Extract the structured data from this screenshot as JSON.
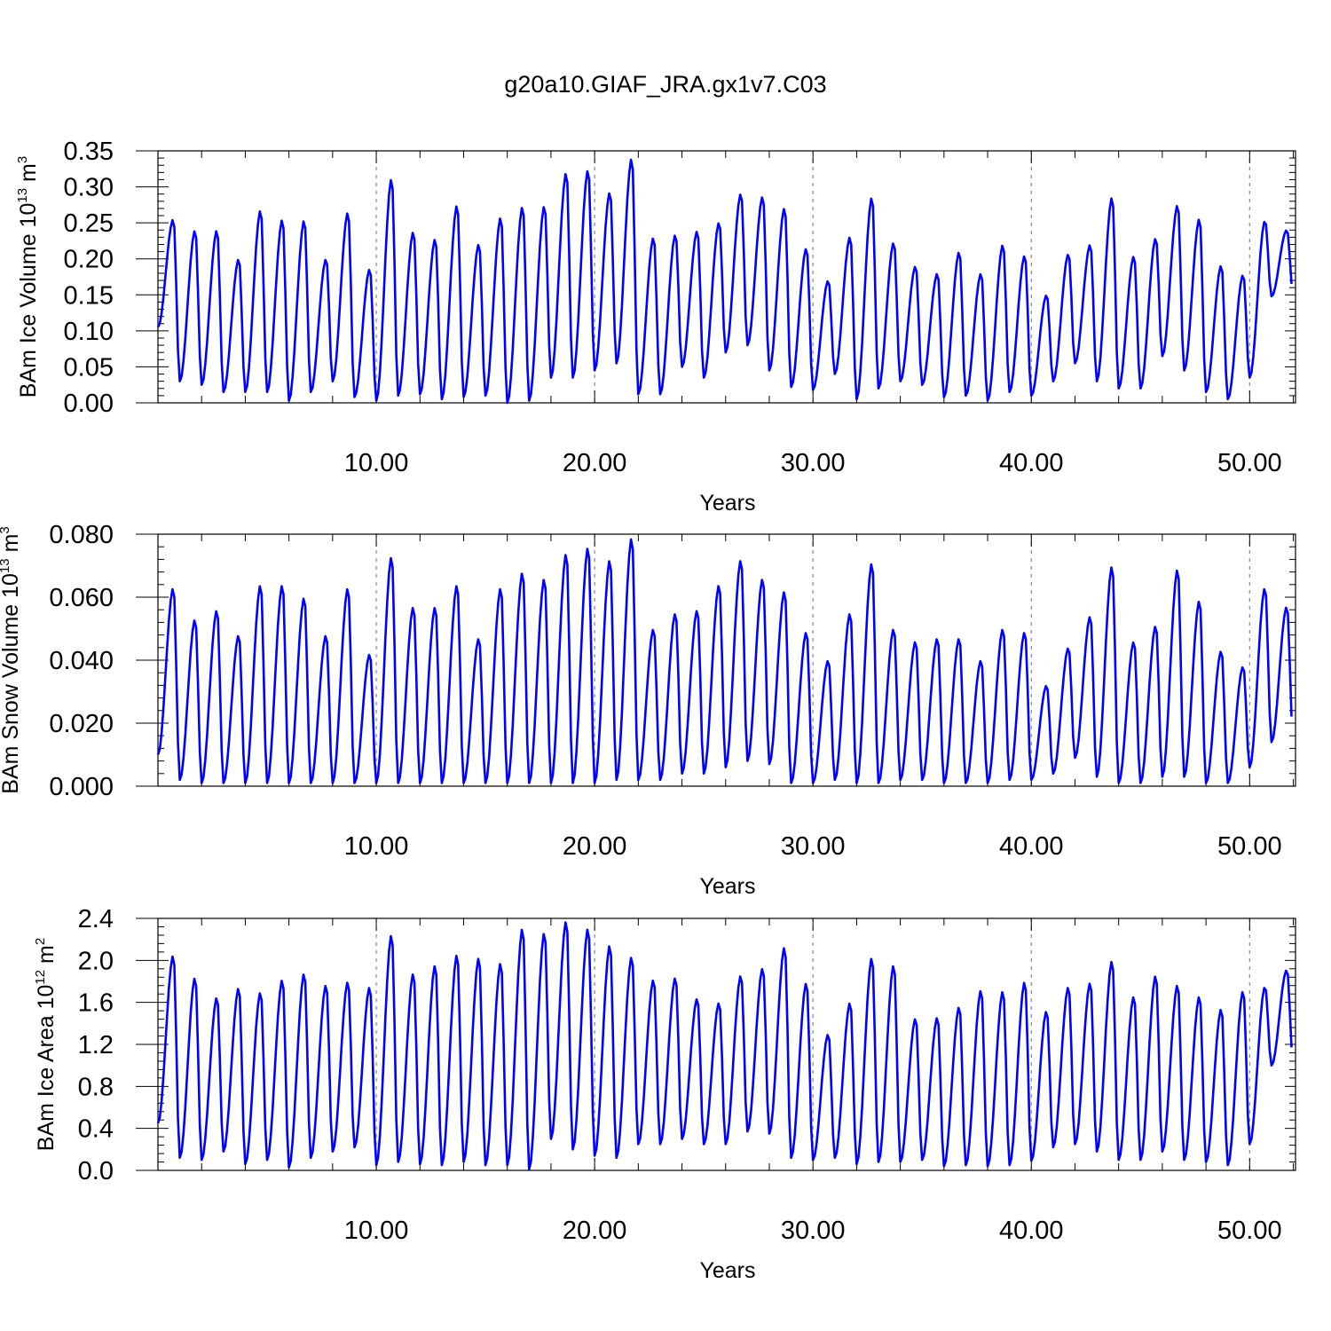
{
  "title": "g20a10.GIAF_JRA.gx1v7.C03",
  "chart_data": [
    {
      "type": "line",
      "ylabel_main": "BAm Ice Volume 10",
      "ylabel_exp": "13",
      "ylabel_unit": " m",
      "ylabel_unit_exp": "3",
      "xlabel": "Years",
      "xlim": [
        0,
        52.1
      ],
      "ylim": [
        0,
        0.35
      ],
      "yticks": [
        0,
        0.05,
        0.1,
        0.15,
        0.2,
        0.25,
        0.3,
        0.35
      ],
      "ytick_labels": [
        "0.00",
        "0.05",
        "0.10",
        "0.15",
        "0.20",
        "0.25",
        "0.30",
        "0.35"
      ],
      "xticks": [
        10,
        20,
        30,
        40,
        50
      ],
      "xtick_labels": [
        "10.00",
        "20.00",
        "30.00",
        "40.00",
        "50.00"
      ],
      "series_color": "#0000ff",
      "year_peak": [
        0.255,
        0.24,
        0.24,
        0.2,
        0.268,
        0.255,
        0.254,
        0.2,
        0.265,
        0.186,
        0.312,
        0.238,
        0.228,
        0.275,
        0.221,
        0.258,
        0.273,
        0.274,
        0.32,
        0.324,
        0.293,
        0.34,
        0.23,
        0.234,
        0.239,
        0.251,
        0.291,
        0.287,
        0.271,
        0.215,
        0.17,
        0.231,
        0.286,
        0.223,
        0.19,
        0.18,
        0.21,
        0.18,
        0.22,
        0.205,
        0.15,
        0.207,
        0.22,
        0.286,
        0.204,
        0.229,
        0.275,
        0.256,
        0.191,
        0.178,
        0.253,
        0.24
      ],
      "year_min": [
        0.105,
        0.03,
        0.025,
        0.015,
        0.015,
        0.015,
        0.003,
        0.015,
        0.03,
        0.008,
        0.003,
        0.01,
        0.012,
        0.005,
        0.008,
        0.01,
        0.0,
        0.003,
        0.035,
        0.035,
        0.045,
        0.055,
        0.012,
        0.012,
        0.05,
        0.035,
        0.07,
        0.08,
        0.045,
        0.022,
        0.018,
        0.04,
        0.005,
        0.02,
        0.03,
        0.025,
        0.008,
        0.01,
        0.003,
        0.015,
        0.01,
        0.03,
        0.055,
        0.03,
        0.02,
        0.02,
        0.065,
        0.045,
        0.015,
        0.005,
        0.035,
        0.148
      ]
    },
    {
      "type": "line",
      "ylabel_main": "BAm Snow Volume 10",
      "ylabel_exp": "13",
      "ylabel_unit": " m",
      "ylabel_unit_exp": "3",
      "xlabel": "Years",
      "xlim": [
        0,
        52.1
      ],
      "ylim": [
        0,
        0.08
      ],
      "yticks": [
        0,
        0.02,
        0.04,
        0.06,
        0.08
      ],
      "ytick_labels": [
        "0.000",
        "0.020",
        "0.040",
        "0.060",
        "0.080"
      ],
      "xticks": [
        10,
        20,
        30,
        40,
        50
      ],
      "xtick_labels": [
        "10.00",
        "20.00",
        "30.00",
        "40.00",
        "50.00"
      ],
      "series_color": "#0000ff",
      "year_peak": [
        0.063,
        0.053,
        0.056,
        0.048,
        0.064,
        0.064,
        0.06,
        0.048,
        0.063,
        0.042,
        0.073,
        0.057,
        0.057,
        0.064,
        0.047,
        0.063,
        0.068,
        0.066,
        0.074,
        0.076,
        0.072,
        0.079,
        0.05,
        0.055,
        0.056,
        0.064,
        0.072,
        0.066,
        0.062,
        0.049,
        0.04,
        0.055,
        0.071,
        0.05,
        0.046,
        0.047,
        0.047,
        0.04,
        0.05,
        0.049,
        0.032,
        0.044,
        0.054,
        0.07,
        0.046,
        0.051,
        0.069,
        0.059,
        0.043,
        0.038,
        0.063,
        0.057
      ],
      "year_min": [
        0.01,
        0.002,
        0.001,
        0.001,
        0.001,
        0.001,
        0.001,
        0.001,
        0.001,
        0.001,
        0.001,
        0.001,
        0.001,
        0.001,
        0.001,
        0.001,
        0.001,
        0.001,
        0.001,
        0.001,
        0.001,
        0.002,
        0.002,
        0.002,
        0.004,
        0.004,
        0.006,
        0.008,
        0.007,
        0.001,
        0.001,
        0.002,
        0.001,
        0.001,
        0.002,
        0.002,
        0.001,
        0.001,
        0.001,
        0.002,
        0.002,
        0.004,
        0.009,
        0.003,
        0.001,
        0.001,
        0.003,
        0.003,
        0.001,
        0.001,
        0.006,
        0.014
      ]
    },
    {
      "type": "line",
      "ylabel_main": "BAm Ice Area 10",
      "ylabel_exp": "12",
      "ylabel_unit": " m",
      "ylabel_unit_exp": "2",
      "xlabel": "Years",
      "xlim": [
        0,
        52.1
      ],
      "ylim": [
        0,
        2.4
      ],
      "yticks": [
        0,
        0.4,
        0.8,
        1.2,
        1.6,
        2.0,
        2.4
      ],
      "ytick_labels": [
        "0.0",
        "0.4",
        "0.8",
        "1.2",
        "1.6",
        "2.0",
        "2.4"
      ],
      "xticks": [
        10,
        20,
        30,
        40,
        50
      ],
      "xtick_labels": [
        "10.00",
        "20.00",
        "30.00",
        "40.00",
        "50.00"
      ],
      "series_color": "#0000ff",
      "year_peak": [
        2.05,
        1.84,
        1.65,
        1.74,
        1.7,
        1.82,
        1.88,
        1.77,
        1.8,
        1.75,
        2.25,
        1.88,
        1.96,
        2.06,
        2.03,
        1.98,
        2.31,
        2.27,
        2.38,
        2.31,
        2.15,
        2.04,
        1.82,
        1.84,
        1.64,
        1.6,
        1.86,
        1.93,
        2.13,
        1.79,
        1.3,
        1.6,
        2.03,
        1.96,
        1.45,
        1.46,
        1.56,
        1.72,
        1.71,
        1.8,
        1.52,
        1.75,
        1.79,
        2.0,
        1.66,
        1.86,
        1.77,
        1.66,
        1.54,
        1.71,
        1.75,
        1.91
      ],
      "year_min": [
        0.45,
        0.12,
        0.1,
        0.18,
        0.06,
        0.1,
        0.03,
        0.12,
        0.18,
        0.22,
        0.05,
        0.08,
        0.06,
        0.05,
        0.08,
        0.05,
        0.05,
        0.01,
        0.3,
        0.2,
        0.14,
        0.12,
        0.25,
        0.25,
        0.3,
        0.25,
        0.25,
        0.37,
        0.35,
        0.12,
        0.1,
        0.12,
        0.06,
        0.08,
        0.08,
        0.1,
        0.04,
        0.05,
        0.04,
        0.05,
        0.09,
        0.22,
        0.25,
        0.18,
        0.1,
        0.1,
        0.18,
        0.1,
        0.08,
        0.05,
        0.25,
        1.0
      ]
    }
  ]
}
